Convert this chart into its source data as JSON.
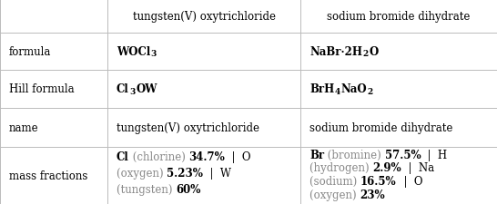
{
  "col_bounds": [
    0,
    118,
    330,
    546
  ],
  "row_bounds": [
    0,
    37,
    78,
    120,
    163,
    226
  ],
  "col_headers": [
    "",
    "tungsten(V) oxytrichloride",
    "sodium bromide dihydrate"
  ],
  "row_labels": [
    "formula",
    "Hill formula",
    "name",
    "mass fractions"
  ],
  "bg_color": "#ffffff",
  "border_color": "#bbbbbb",
  "text_color": "#000000",
  "gray_color": "#888888",
  "font_size": 8.5,
  "sub_font_size": 6.5
}
